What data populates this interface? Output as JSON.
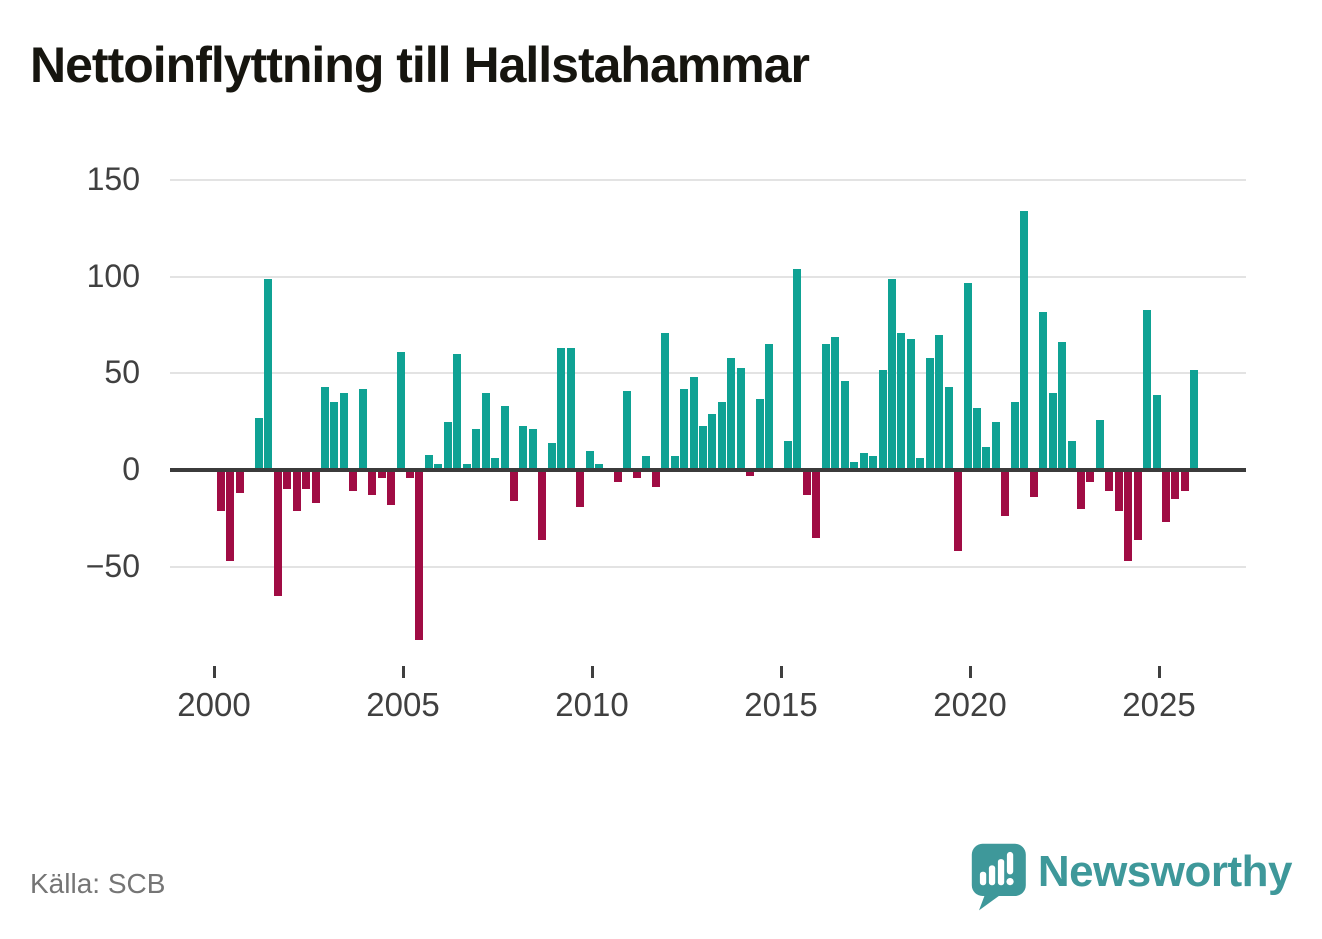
{
  "title": "Nettoinflyttning till Hallstahammar",
  "source": {
    "text": "Källa: SCB"
  },
  "logo": {
    "text": "Newsworthy"
  },
  "colors": {
    "positive_bar": "#0fa294",
    "negative_bar": "#a00c44",
    "gridline": "#e3e3e3",
    "zero_line": "#3b3b3b",
    "axis_text": "#404040",
    "source_text": "#757575",
    "logo_teal": "#3e989a",
    "title_text": "#16150f"
  },
  "chart_data": {
    "type": "bar",
    "title": "Nettoinflyttning till Hallstahammar",
    "xlabel": "",
    "ylabel": "",
    "frequency": "quarterly",
    "ylim": [
      -100,
      150
    ],
    "grid": "horizontal",
    "legend": "none",
    "y_axis": {
      "ticks": [
        {
          "value": 150,
          "label": "150"
        },
        {
          "value": 100,
          "label": "100"
        },
        {
          "value": 50,
          "label": "50"
        },
        {
          "value": 0,
          "label": "0"
        },
        {
          "value": -50,
          "label": "−50"
        }
      ]
    },
    "x_axis": {
      "ticks": [
        {
          "year": 2000,
          "label": "2000"
        },
        {
          "year": 2005,
          "label": "2005"
        },
        {
          "year": 2010,
          "label": "2010"
        },
        {
          "year": 2015,
          "label": "2015"
        },
        {
          "year": 2020,
          "label": "2020"
        },
        {
          "year": 2025,
          "label": "2025"
        }
      ]
    },
    "periods": [
      "2000Q1",
      "2000Q2",
      "2000Q3",
      "2000Q4",
      "2001Q1",
      "2001Q2",
      "2001Q3",
      "2001Q4",
      "2002Q1",
      "2002Q2",
      "2002Q3",
      "2002Q4",
      "2003Q1",
      "2003Q2",
      "2003Q3",
      "2003Q4",
      "2004Q1",
      "2004Q2",
      "2004Q3",
      "2004Q4",
      "2005Q1",
      "2005Q2",
      "2005Q3",
      "2005Q4",
      "2006Q1",
      "2006Q2",
      "2006Q3",
      "2006Q4",
      "2007Q1",
      "2007Q2",
      "2007Q3",
      "2007Q4",
      "2008Q1",
      "2008Q2",
      "2008Q3",
      "2008Q4",
      "2009Q1",
      "2009Q2",
      "2009Q3",
      "2009Q4",
      "2010Q1",
      "2010Q2",
      "2010Q3",
      "2010Q4",
      "2011Q1",
      "2011Q2",
      "2011Q3",
      "2011Q4",
      "2012Q1",
      "2012Q2",
      "2012Q3",
      "2012Q4",
      "2013Q1",
      "2013Q2",
      "2013Q3",
      "2013Q4",
      "2014Q1",
      "2014Q2",
      "2014Q3",
      "2014Q4",
      "2015Q1",
      "2015Q2",
      "2015Q3",
      "2015Q4",
      "2016Q1",
      "2016Q2",
      "2016Q3",
      "2016Q4",
      "2017Q1",
      "2017Q2",
      "2017Q3",
      "2017Q4",
      "2018Q1",
      "2018Q2",
      "2018Q3",
      "2018Q4",
      "2019Q1",
      "2019Q2",
      "2019Q3",
      "2019Q4",
      "2020Q1",
      "2020Q2",
      "2020Q3",
      "2020Q4",
      "2021Q1",
      "2021Q2",
      "2021Q3",
      "2021Q4",
      "2022Q1",
      "2022Q2",
      "2022Q3",
      "2022Q4",
      "2023Q1",
      "2023Q2",
      "2023Q3",
      "2023Q4",
      "2024Q1",
      "2024Q2",
      "2024Q3",
      "2024Q4",
      "2025Q1",
      "2025Q2",
      "2025Q3",
      "2025Q4"
    ],
    "values": [
      -21,
      -47,
      -12,
      0,
      27,
      99,
      -65,
      -10,
      -21,
      -10,
      -17,
      43,
      35,
      40,
      -11,
      42,
      -13,
      -4,
      -18,
      61,
      -4,
      -88,
      8,
      3,
      25,
      60,
      3,
      21,
      40,
      6,
      33,
      -16,
      23,
      21,
      -36,
      14,
      63,
      63,
      -19,
      10,
      3,
      0,
      -6,
      41,
      -4,
      7,
      -9,
      71,
      7,
      42,
      48,
      23,
      29,
      35,
      58,
      53,
      -3,
      37,
      65,
      0,
      15,
      104,
      -13,
      -35,
      65,
      69,
      46,
      4,
      9,
      7,
      52,
      99,
      71,
      68,
      6,
      58,
      70,
      43,
      -42,
      97,
      32,
      12,
      25,
      -24,
      35,
      134,
      -14,
      82,
      40,
      66,
      15,
      -20,
      -6,
      26,
      -11,
      -21,
      -47,
      -36,
      83,
      39,
      -27,
      -15,
      -11,
      52
    ]
  }
}
